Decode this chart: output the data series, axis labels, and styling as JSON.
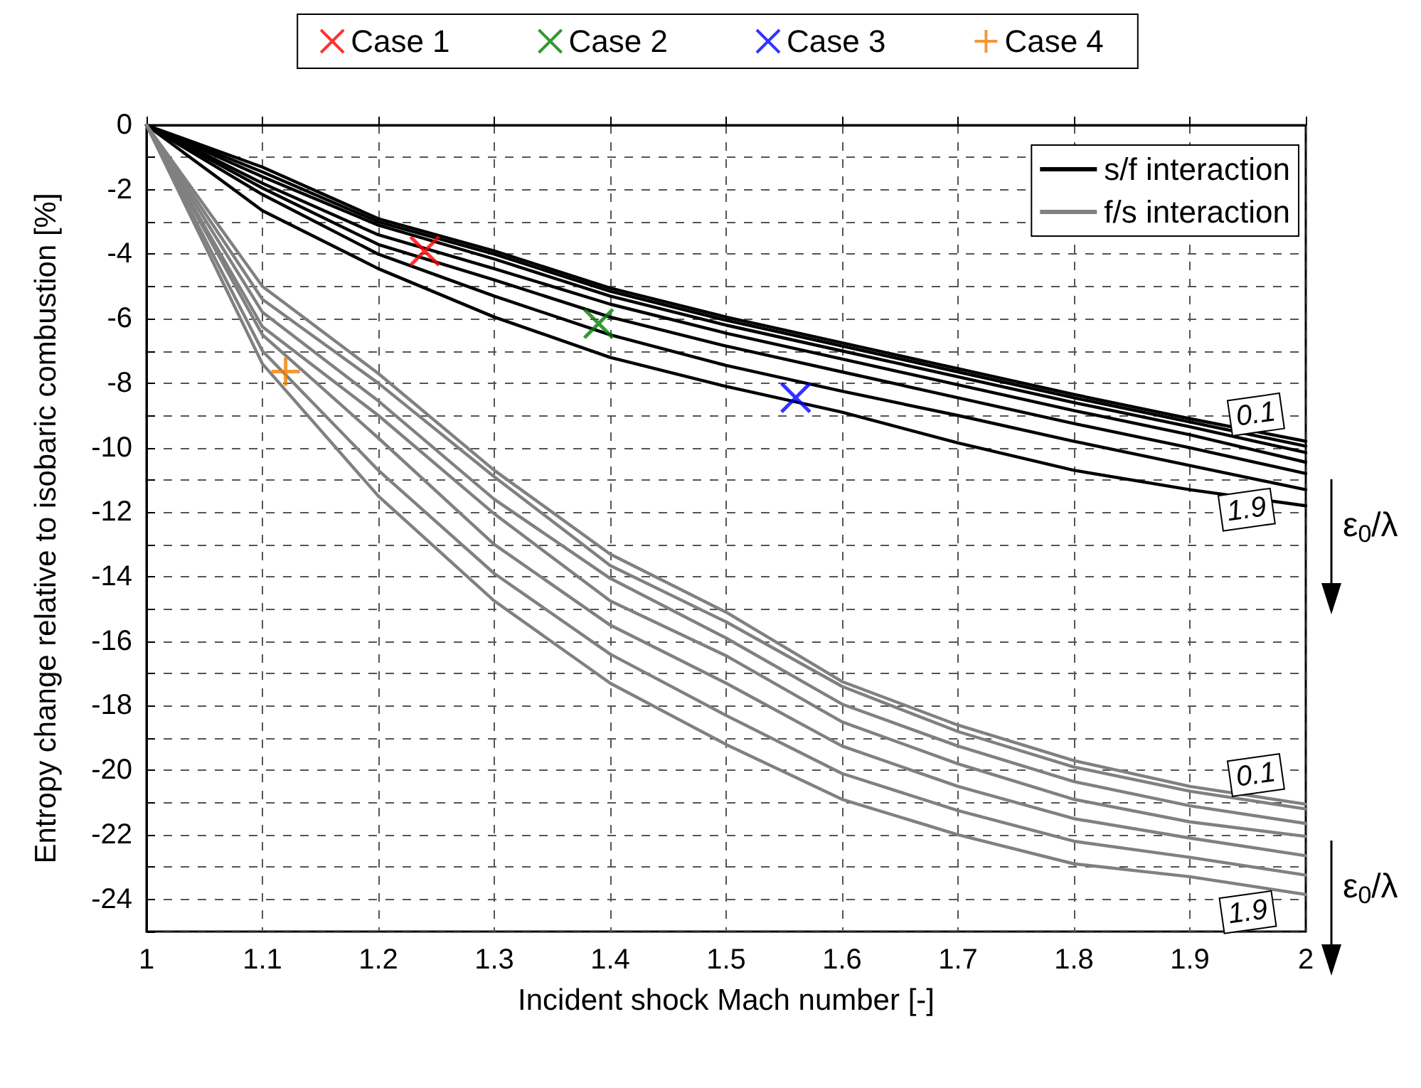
{
  "chart_data": {
    "type": "line",
    "xlabel": "Incident shock Mach number [-]",
    "ylabel": "Entropy change relative to isobaric combustion [%]",
    "x": [
      1,
      1.1,
      1.2,
      1.3,
      1.4,
      1.5,
      1.6,
      1.7,
      1.8,
      1.9,
      2
    ],
    "xlim": [
      1,
      2
    ],
    "xticks": [
      1,
      1.1,
      1.2,
      1.3,
      1.4,
      1.5,
      1.6,
      1.7,
      1.8,
      1.9,
      2
    ],
    "ylim": [
      -25,
      0
    ],
    "yticks": [
      0,
      {
        "value": -1,
        "label": null
      },
      -2,
      {
        "value": -3,
        "label": null
      },
      -4,
      {
        "value": -5,
        "label": null
      },
      -6,
      {
        "value": -7,
        "label": null
      },
      -8,
      {
        "value": -9,
        "label": null
      },
      -10,
      {
        "value": -11,
        "label": null
      },
      -12,
      {
        "value": -13,
        "label": null
      },
      -14,
      {
        "value": -15,
        "label": null
      },
      -16,
      {
        "value": -17,
        "label": null
      },
      -18,
      {
        "value": -19,
        "label": null
      },
      -20,
      {
        "value": -21,
        "label": null
      },
      -22,
      {
        "value": -23,
        "label": null
      },
      -24,
      {
        "value": -25,
        "label": null
      }
    ],
    "grid": true,
    "legend": "top",
    "marker": "none",
    "line_style": "solid",
    "series": [
      {
        "name": "s/f interaction",
        "color": "#000000",
        "values": [
          0,
          -1.3,
          -2.9,
          -3.9,
          -5.05,
          -5.95,
          -6.75,
          -7.55,
          -8.35,
          -9.1,
          -9.8
        ]
      },
      {
        "color": "#000000",
        "values": [
          0,
          -1.45,
          -3.0,
          -4.0,
          -5.15,
          -6.05,
          -6.85,
          -7.65,
          -8.45,
          -9.2,
          -9.95
        ]
      },
      {
        "color": "#000000",
        "values": [
          0,
          -1.6,
          -3.1,
          -4.15,
          -5.3,
          -6.2,
          -7.0,
          -7.8,
          -8.6,
          -9.35,
          -10.15
        ]
      },
      {
        "color": "#000000",
        "values": [
          0,
          -1.8,
          -3.4,
          -4.45,
          -5.55,
          -6.45,
          -7.25,
          -8.05,
          -8.85,
          -9.6,
          -10.45
        ]
      },
      {
        "color": "#000000",
        "values": [
          0,
          -1.95,
          -3.7,
          -4.8,
          -5.95,
          -6.85,
          -7.65,
          -8.45,
          -9.25,
          -10.0,
          -10.8
        ]
      },
      {
        "color": "#000000",
        "values": [
          0,
          -2.15,
          -4.0,
          -5.3,
          -6.5,
          -7.45,
          -8.25,
          -9.0,
          -9.8,
          -10.55,
          -11.3
        ]
      },
      {
        "color": "#000000",
        "values": [
          0,
          -2.65,
          -4.45,
          -5.95,
          -7.2,
          -8.1,
          -8.9,
          -9.85,
          -10.7,
          -11.3,
          -11.8
        ]
      },
      {
        "name": "f/s interaction",
        "color": "#808080",
        "values": [
          0,
          -5.0,
          -7.7,
          -10.7,
          -13.3,
          -15.1,
          -17.25,
          -18.6,
          -19.7,
          -20.5,
          -21.05
        ]
      },
      {
        "color": "#808080",
        "values": [
          0,
          -5.4,
          -8.0,
          -10.9,
          -13.65,
          -15.4,
          -17.4,
          -18.8,
          -19.9,
          -20.65,
          -21.2
        ]
      },
      {
        "color": "#808080",
        "values": [
          0,
          -5.8,
          -8.55,
          -11.6,
          -14.05,
          -15.9,
          -17.95,
          -19.25,
          -20.35,
          -21.1,
          -21.65
        ]
      },
      {
        "color": "#808080",
        "values": [
          0,
          -6.25,
          -9.0,
          -12.05,
          -14.75,
          -16.45,
          -18.5,
          -19.8,
          -20.9,
          -21.6,
          -22.05
        ]
      },
      {
        "color": "#808080",
        "values": [
          0,
          -6.5,
          -9.7,
          -13.0,
          -15.5,
          -17.3,
          -19.25,
          -20.5,
          -21.5,
          -22.1,
          -22.65
        ]
      },
      {
        "color": "#808080",
        "values": [
          0,
          -7.0,
          -10.7,
          -13.9,
          -16.4,
          -18.3,
          -20.1,
          -21.25,
          -22.2,
          -22.7,
          -23.25
        ]
      },
      {
        "color": "#808080",
        "values": [
          0,
          -7.4,
          -11.5,
          -14.75,
          -17.3,
          -19.2,
          -20.9,
          -22.0,
          -22.9,
          -23.3,
          -23.85
        ]
      },
      {
        "name": "Case 1",
        "type": "scatter",
        "marker": "x",
        "color": "#ff0000",
        "x": [
          1.24
        ],
        "values": [
          -3.9
        ]
      },
      {
        "name": "Case 2",
        "type": "scatter",
        "marker": "x",
        "color": "#008000",
        "x": [
          1.39
        ],
        "values": [
          -6.15
        ]
      },
      {
        "name": "Case 3",
        "type": "scatter",
        "marker": "x",
        "color": "#0000ff",
        "x": [
          1.56
        ],
        "values": [
          -8.45
        ]
      },
      {
        "name": "Case 4",
        "type": "scatter",
        "marker": "cross",
        "color": "#f08000",
        "x": [
          1.12
        ],
        "values": [
          -7.64
        ]
      }
    ],
    "annotations": [
      {
        "text": "0.1",
        "x": 1.957,
        "y": -8.97
      },
      {
        "text": "1.9",
        "x": 1.949,
        "y": -11.92
      },
      {
        "text": "0.1",
        "x": 1.957,
        "y": -20.15
      },
      {
        "text": "1.9",
        "x": 1.95,
        "y": -24.4
      },
      "ε$_{0}$/λ",
      "ε$_{0}$/λ"
    ]
  }
}
